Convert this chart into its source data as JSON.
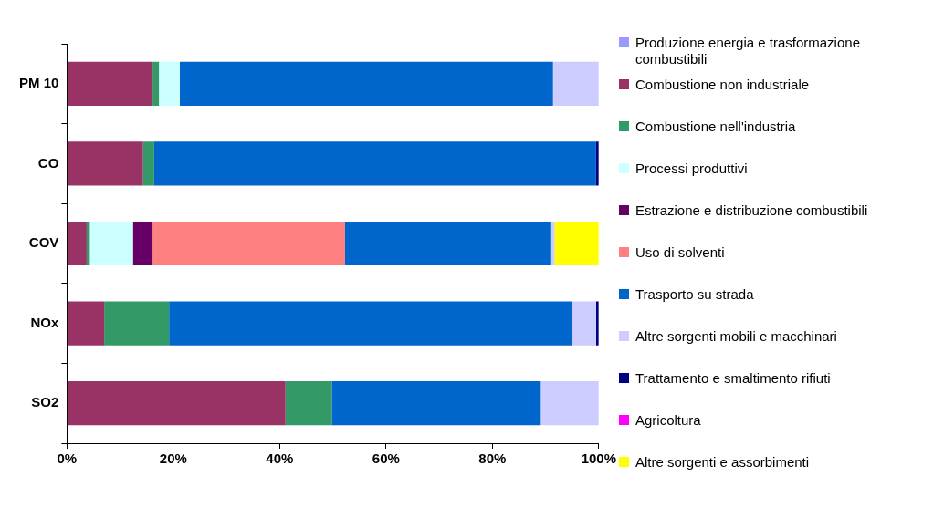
{
  "chart_data": {
    "type": "bar",
    "orientation": "horizontal",
    "stacked": true,
    "categories": [
      "PM 10",
      "CO",
      "COV",
      "NOx",
      "SO2"
    ],
    "xlim": [
      0,
      100
    ],
    "xticks": [
      {
        "value": 0,
        "label": "0%"
      },
      {
        "value": 20,
        "label": "20%"
      },
      {
        "value": 40,
        "label": "40%"
      },
      {
        "value": 60,
        "label": "60%"
      },
      {
        "value": 80,
        "label": "80%"
      },
      {
        "value": 100,
        "label": "100%"
      }
    ],
    "legend": "right",
    "grid": false,
    "series": [
      {
        "name": "Produzione energia e trasformazione combustibili",
        "color": "#9999ff",
        "values": [
          0,
          0,
          0,
          0,
          0
        ]
      },
      {
        "name": "Combustione non industriale",
        "color": "#993366",
        "values": [
          16.1,
          14.3,
          3.7,
          7.0,
          41.1
        ]
      },
      {
        "name": "Combustione nell'industria",
        "color": "#339966",
        "values": [
          1.2,
          2.1,
          0.6,
          12.2,
          8.7
        ]
      },
      {
        "name": "Processi produttivi",
        "color": "#ccffff",
        "values": [
          3.9,
          0,
          8.1,
          0,
          0
        ]
      },
      {
        "name": "Estrazione e distribuzione combustibili",
        "color": "#660066",
        "values": [
          0,
          0,
          3.7,
          0,
          0
        ]
      },
      {
        "name": "Uso di solventi",
        "color": "#ff8080",
        "values": [
          0,
          0,
          36.2,
          0,
          0
        ]
      },
      {
        "name": "Trasporto su strada",
        "color": "#0066cc",
        "values": [
          70.2,
          83.1,
          38.6,
          75.8,
          39.3
        ]
      },
      {
        "name": "Altre sorgenti mobili e macchinari",
        "color": "#ccccff",
        "values": [
          8.6,
          0,
          0.8,
          4.5,
          10.9
        ]
      },
      {
        "name": "Trattamento e smaltimento rifiuti",
        "color": "#000080",
        "values": [
          0,
          0.5,
          0,
          0.5,
          0
        ]
      },
      {
        "name": "Agricoltura",
        "color": "#ff00ff",
        "values": [
          0,
          0,
          0,
          0,
          0
        ]
      },
      {
        "name": "Altre sorgenti e assorbimenti",
        "color": "#ffff00",
        "values": [
          0,
          0,
          8.3,
          0,
          0
        ]
      }
    ]
  }
}
